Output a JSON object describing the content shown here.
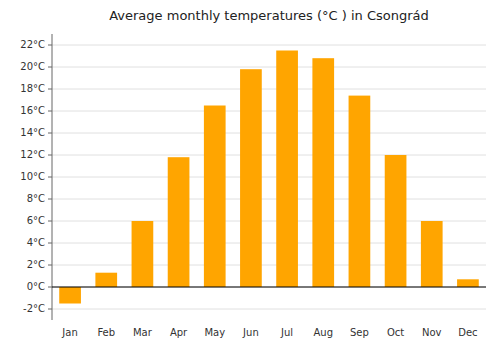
{
  "chart_data": {
    "type": "bar",
    "title": "Average monthly temperatures (°C ) in Csongrád",
    "categories": [
      "Jan",
      "Feb",
      "Mar",
      "Apr",
      "May",
      "Jun",
      "Jul",
      "Aug",
      "Sep",
      "Oct",
      "Nov",
      "Dec"
    ],
    "values": [
      -1.5,
      1.3,
      6.0,
      11.8,
      16.5,
      19.8,
      21.5,
      20.8,
      17.4,
      12.0,
      6.0,
      0.7
    ],
    "color": "#FFA500",
    "ylim": [
      -3,
      23
    ],
    "yticks": [
      {
        "value": -2,
        "label": "-2°C"
      },
      {
        "value": 0,
        "label": "0°C"
      },
      {
        "value": 2,
        "label": "2°C"
      },
      {
        "value": 4,
        "label": "4°C"
      },
      {
        "value": 6,
        "label": "6°C"
      },
      {
        "value": 8,
        "label": "8°C"
      },
      {
        "value": 10,
        "label": "10°C"
      },
      {
        "value": 12,
        "label": "12°C"
      },
      {
        "value": 14,
        "label": "14°C"
      },
      {
        "value": 16,
        "label": "16°C"
      },
      {
        "value": 18,
        "label": "18°C"
      },
      {
        "value": 20,
        "label": "20°C"
      },
      {
        "value": 22,
        "label": "22°C"
      }
    ],
    "grid": true
  }
}
